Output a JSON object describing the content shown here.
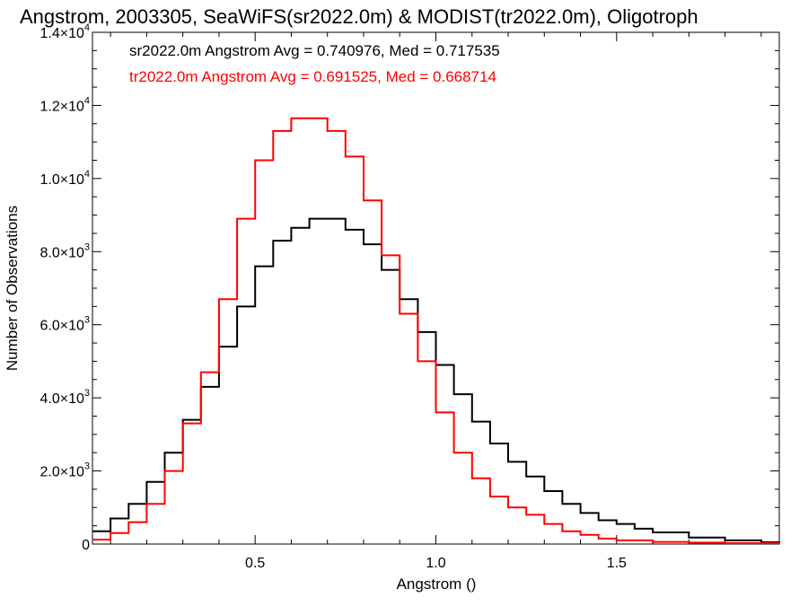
{
  "chart_data": {
    "type": "line",
    "step": true,
    "title": "Angstrom, 2003305, SeaWiFS(sr2022.0m) & MODIST(tr2022.0m), Oligotroph",
    "xlabel": "Angstrom ()",
    "ylabel": "Number of Observations",
    "xlim": [
      0.05,
      1.95
    ],
    "ylim": [
      0,
      14000
    ],
    "xticks": [
      0.5,
      1.0,
      1.5
    ],
    "xtick_labels": [
      "0.5",
      "1.0",
      "1.5"
    ],
    "yticks": [
      0,
      2000,
      4000,
      6000,
      8000,
      10000,
      12000,
      14000
    ],
    "ytick_labels": [
      {
        "mant": "0",
        "exp": ""
      },
      {
        "mant": "2.0×10",
        "exp": "3"
      },
      {
        "mant": "4.0×10",
        "exp": "3"
      },
      {
        "mant": "6.0×10",
        "exp": "3"
      },
      {
        "mant": "8.0×10",
        "exp": "3"
      },
      {
        "mant": "1.0×10",
        "exp": "4"
      },
      {
        "mant": "1.2×10",
        "exp": "4"
      },
      {
        "mant": "1.4×10",
        "exp": "4"
      }
    ],
    "grid": false,
    "legend_position": "top-left",
    "series": [
      {
        "name": "sr2022.0m",
        "label": "sr2022.0m Angstrom Avg = 0.740976, Med = 0.717535",
        "color": "#000000",
        "x": [
          0.05,
          0.1,
          0.15,
          0.2,
          0.25,
          0.3,
          0.35,
          0.4,
          0.45,
          0.5,
          0.55,
          0.6,
          0.65,
          0.7,
          0.75,
          0.8,
          0.85,
          0.9,
          0.95,
          1.0,
          1.05,
          1.1,
          1.15,
          1.2,
          1.25,
          1.3,
          1.35,
          1.4,
          1.45,
          1.5,
          1.55,
          1.6,
          1.7,
          1.8,
          1.9,
          1.95
        ],
        "y": [
          350,
          700,
          1100,
          1700,
          2500,
          3400,
          4300,
          5400,
          6500,
          7600,
          8300,
          8650,
          8900,
          8900,
          8600,
          8200,
          7500,
          6700,
          5800,
          4900,
          4100,
          3350,
          2750,
          2250,
          1850,
          1450,
          1100,
          850,
          650,
          550,
          420,
          320,
          180,
          100,
          50,
          40
        ]
      },
      {
        "name": "tr2022.0m",
        "label": "tr2022.0m Angstrom Avg = 0.691525, Med = 0.668714",
        "color": "#ff0000",
        "x": [
          0.05,
          0.1,
          0.15,
          0.2,
          0.25,
          0.3,
          0.35,
          0.4,
          0.45,
          0.5,
          0.55,
          0.6,
          0.65,
          0.7,
          0.75,
          0.8,
          0.85,
          0.9,
          0.95,
          1.0,
          1.05,
          1.1,
          1.15,
          1.2,
          1.25,
          1.3,
          1.35,
          1.4,
          1.45,
          1.5,
          1.6,
          1.7,
          1.8,
          1.95
        ],
        "y": [
          120,
          300,
          600,
          1100,
          2000,
          3300,
          4700,
          6700,
          8900,
          10500,
          11300,
          11650,
          11650,
          11300,
          10600,
          9400,
          7900,
          6300,
          5000,
          3600,
          2500,
          1800,
          1300,
          1000,
          800,
          550,
          350,
          250,
          150,
          100,
          60,
          40,
          25,
          10
        ]
      }
    ]
  }
}
